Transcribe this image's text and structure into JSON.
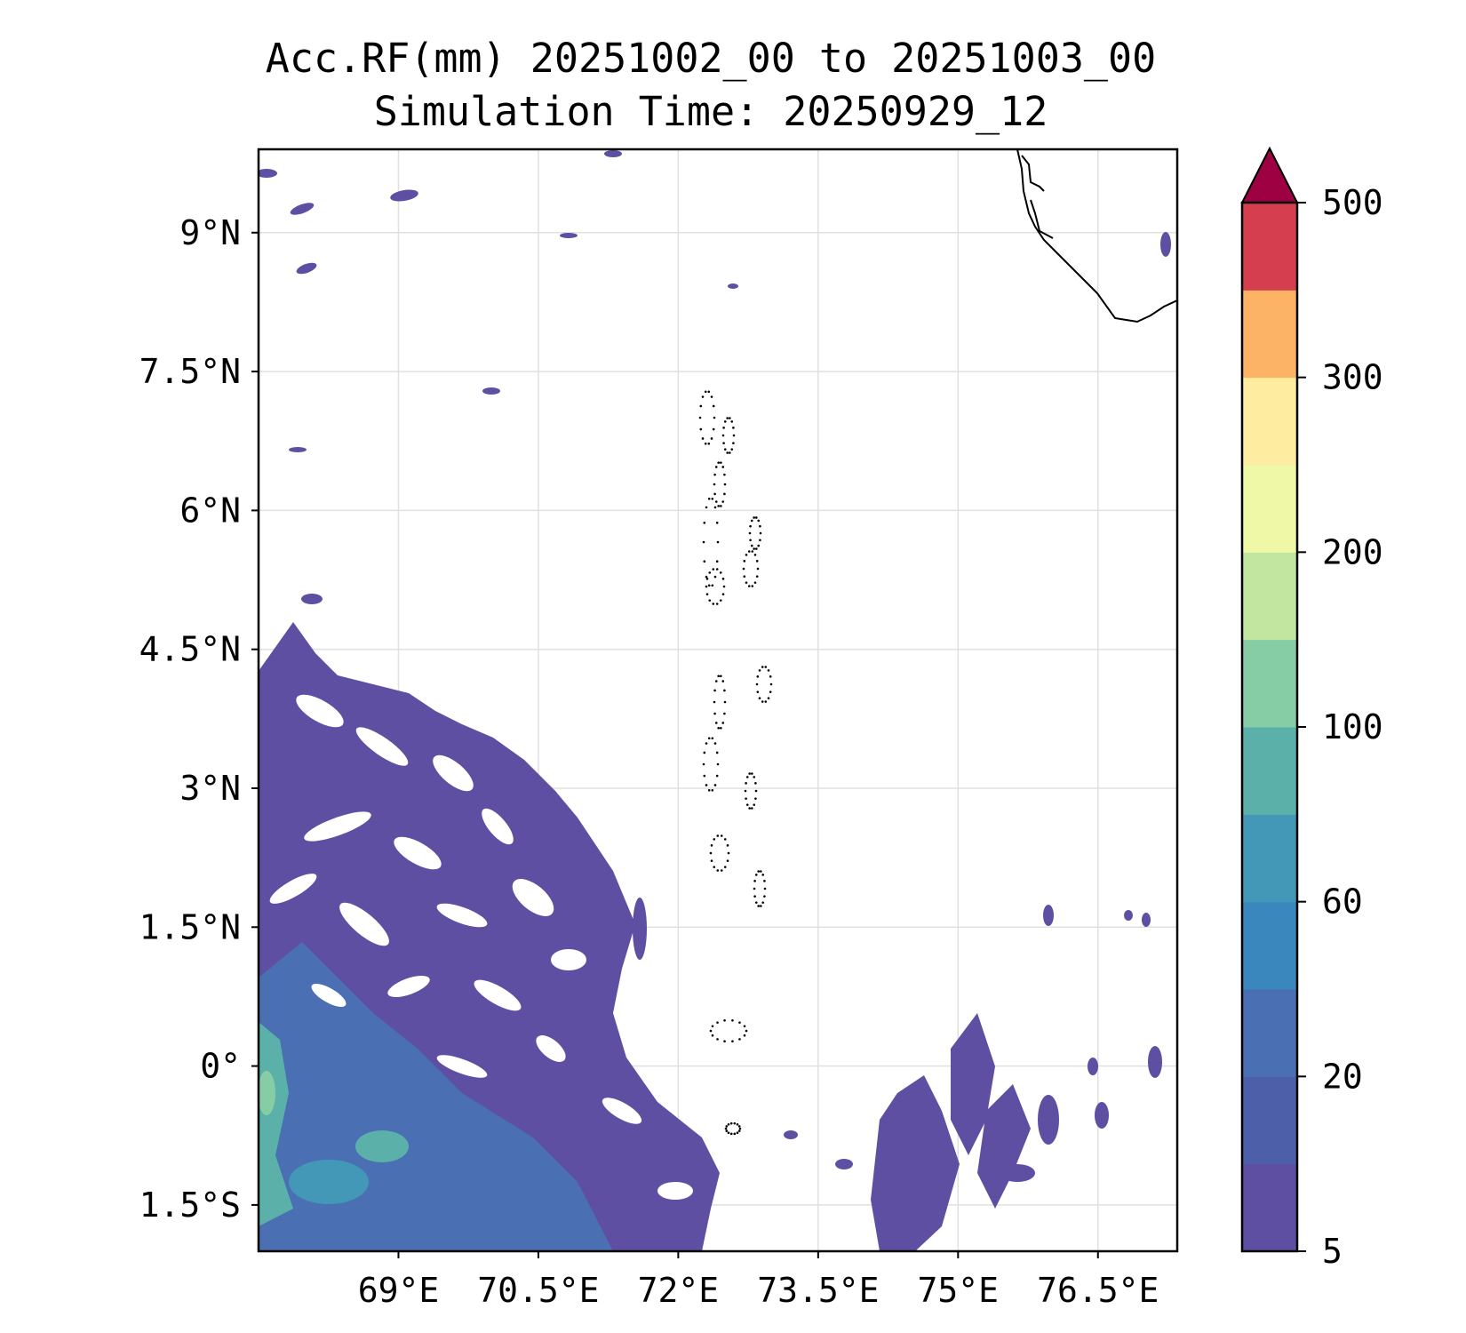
{
  "title": {
    "line1": "Acc.RF(mm) 20251002_00 to 20251003_00",
    "line2": "Simulation Time: 20250929_12"
  },
  "map": {
    "lon_range": [
      67.5,
      77.35
    ],
    "lat_range": [
      -2.0,
      9.9
    ],
    "lon_ticks": [
      {
        "value": 69.0,
        "label": "69°E"
      },
      {
        "value": 70.5,
        "label": "70.5°E"
      },
      {
        "value": 72.0,
        "label": "72°E"
      },
      {
        "value": 73.5,
        "label": "73.5°E"
      },
      {
        "value": 75.0,
        "label": "75°E"
      },
      {
        "value": 76.5,
        "label": "76.5°E"
      }
    ],
    "lat_ticks": [
      {
        "value": 9.0,
        "label": "9°N"
      },
      {
        "value": 7.5,
        "label": "7.5°N"
      },
      {
        "value": 6.0,
        "label": "6°N"
      },
      {
        "value": 4.5,
        "label": "4.5°N"
      },
      {
        "value": 3.0,
        "label": "3°N"
      },
      {
        "value": 1.5,
        "label": "1.5°N"
      },
      {
        "value": 0.0,
        "label": "0°"
      },
      {
        "value": -1.5,
        "label": "1.5°S"
      }
    ]
  },
  "colorbar": {
    "levels": [
      5,
      10,
      20,
      40,
      60,
      80,
      100,
      150,
      200,
      250,
      300,
      400,
      500
    ],
    "colors": [
      "#5e4fa2",
      "#4d5fa8",
      "#4a6fb3",
      "#3a87bd",
      "#4398b8",
      "#5bb1aa",
      "#86cda6",
      "#c2e6a0",
      "#eef8a6",
      "#feeda1",
      "#fdb365",
      "#d53e4f"
    ],
    "extend_color": "#9e0142",
    "tick_labels": [
      {
        "value": 5,
        "label": "5"
      },
      {
        "value": 20,
        "label": "20"
      },
      {
        "value": 60,
        "label": "60"
      },
      {
        "value": 100,
        "label": "100"
      },
      {
        "value": 200,
        "label": "200"
      },
      {
        "value": 300,
        "label": "300"
      },
      {
        "value": 500,
        "label": "500"
      }
    ]
  },
  "colors": {
    "rain_light": "#5e4fa2",
    "rain_moderate": "#4a6fb3",
    "rain_heavy": "#5bb1aa",
    "grid": "#e0e0e0",
    "coastline": "#000000"
  }
}
